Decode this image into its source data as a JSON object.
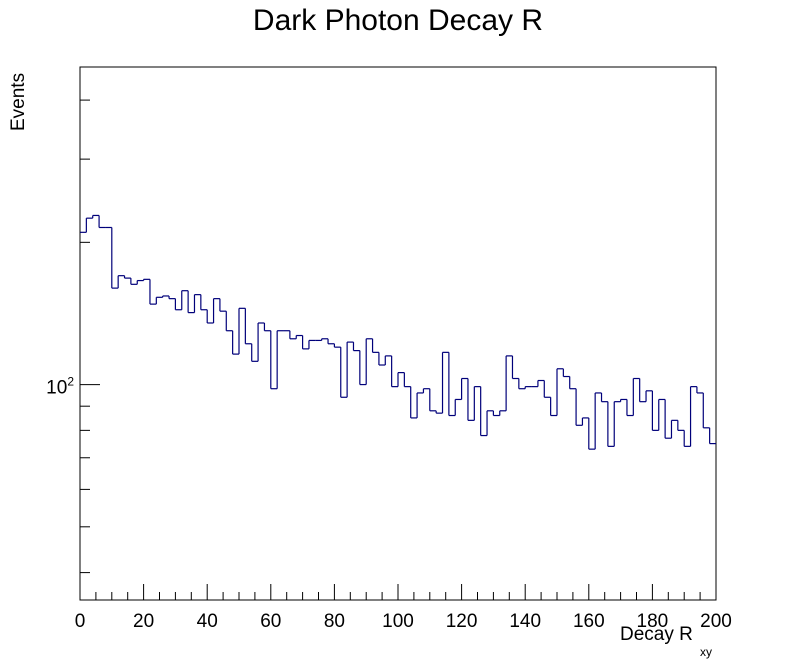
{
  "chart_data": {
    "type": "bar",
    "style": "step-histogram",
    "title": "Dark Photon Decay R",
    "xlabel": "Decay R",
    "xlabel_subscript": "xy",
    "ylabel": "Events",
    "xlim": [
      0,
      200
    ],
    "ylim": [
      35,
      470
    ],
    "yscale": "log",
    "x_ticks": [
      "0",
      "20",
      "40",
      "60",
      "80",
      "100",
      "120",
      "140",
      "160",
      "180",
      "200"
    ],
    "y_tick_label": {
      "base": "10",
      "exponent": "2"
    },
    "bin_width": 2,
    "line_color": "#00007a",
    "grid": false,
    "values": [
      210,
      225,
      228,
      215,
      215,
      160,
      170,
      168,
      163,
      166,
      167,
      148,
      153,
      154,
      152,
      144,
      158,
      142,
      155,
      144,
      135,
      152,
      143,
      130,
      116,
      145,
      122,
      112,
      135,
      130,
      98,
      130,
      130,
      125,
      127,
      119,
      124,
      124,
      125,
      122,
      120,
      94,
      123,
      118,
      100,
      125,
      117,
      110,
      115,
      99,
      106,
      99,
      85,
      96,
      98,
      88,
      87,
      117,
      86,
      93,
      103,
      84,
      99,
      78,
      88,
      86,
      88,
      115,
      103,
      98,
      99,
      99,
      102,
      94,
      86,
      108,
      104,
      98,
      82,
      85,
      73,
      96,
      92,
      74,
      92,
      93,
      86,
      103,
      92,
      97,
      80,
      93,
      77,
      84,
      80,
      74,
      99,
      96,
      81,
      75
    ]
  }
}
